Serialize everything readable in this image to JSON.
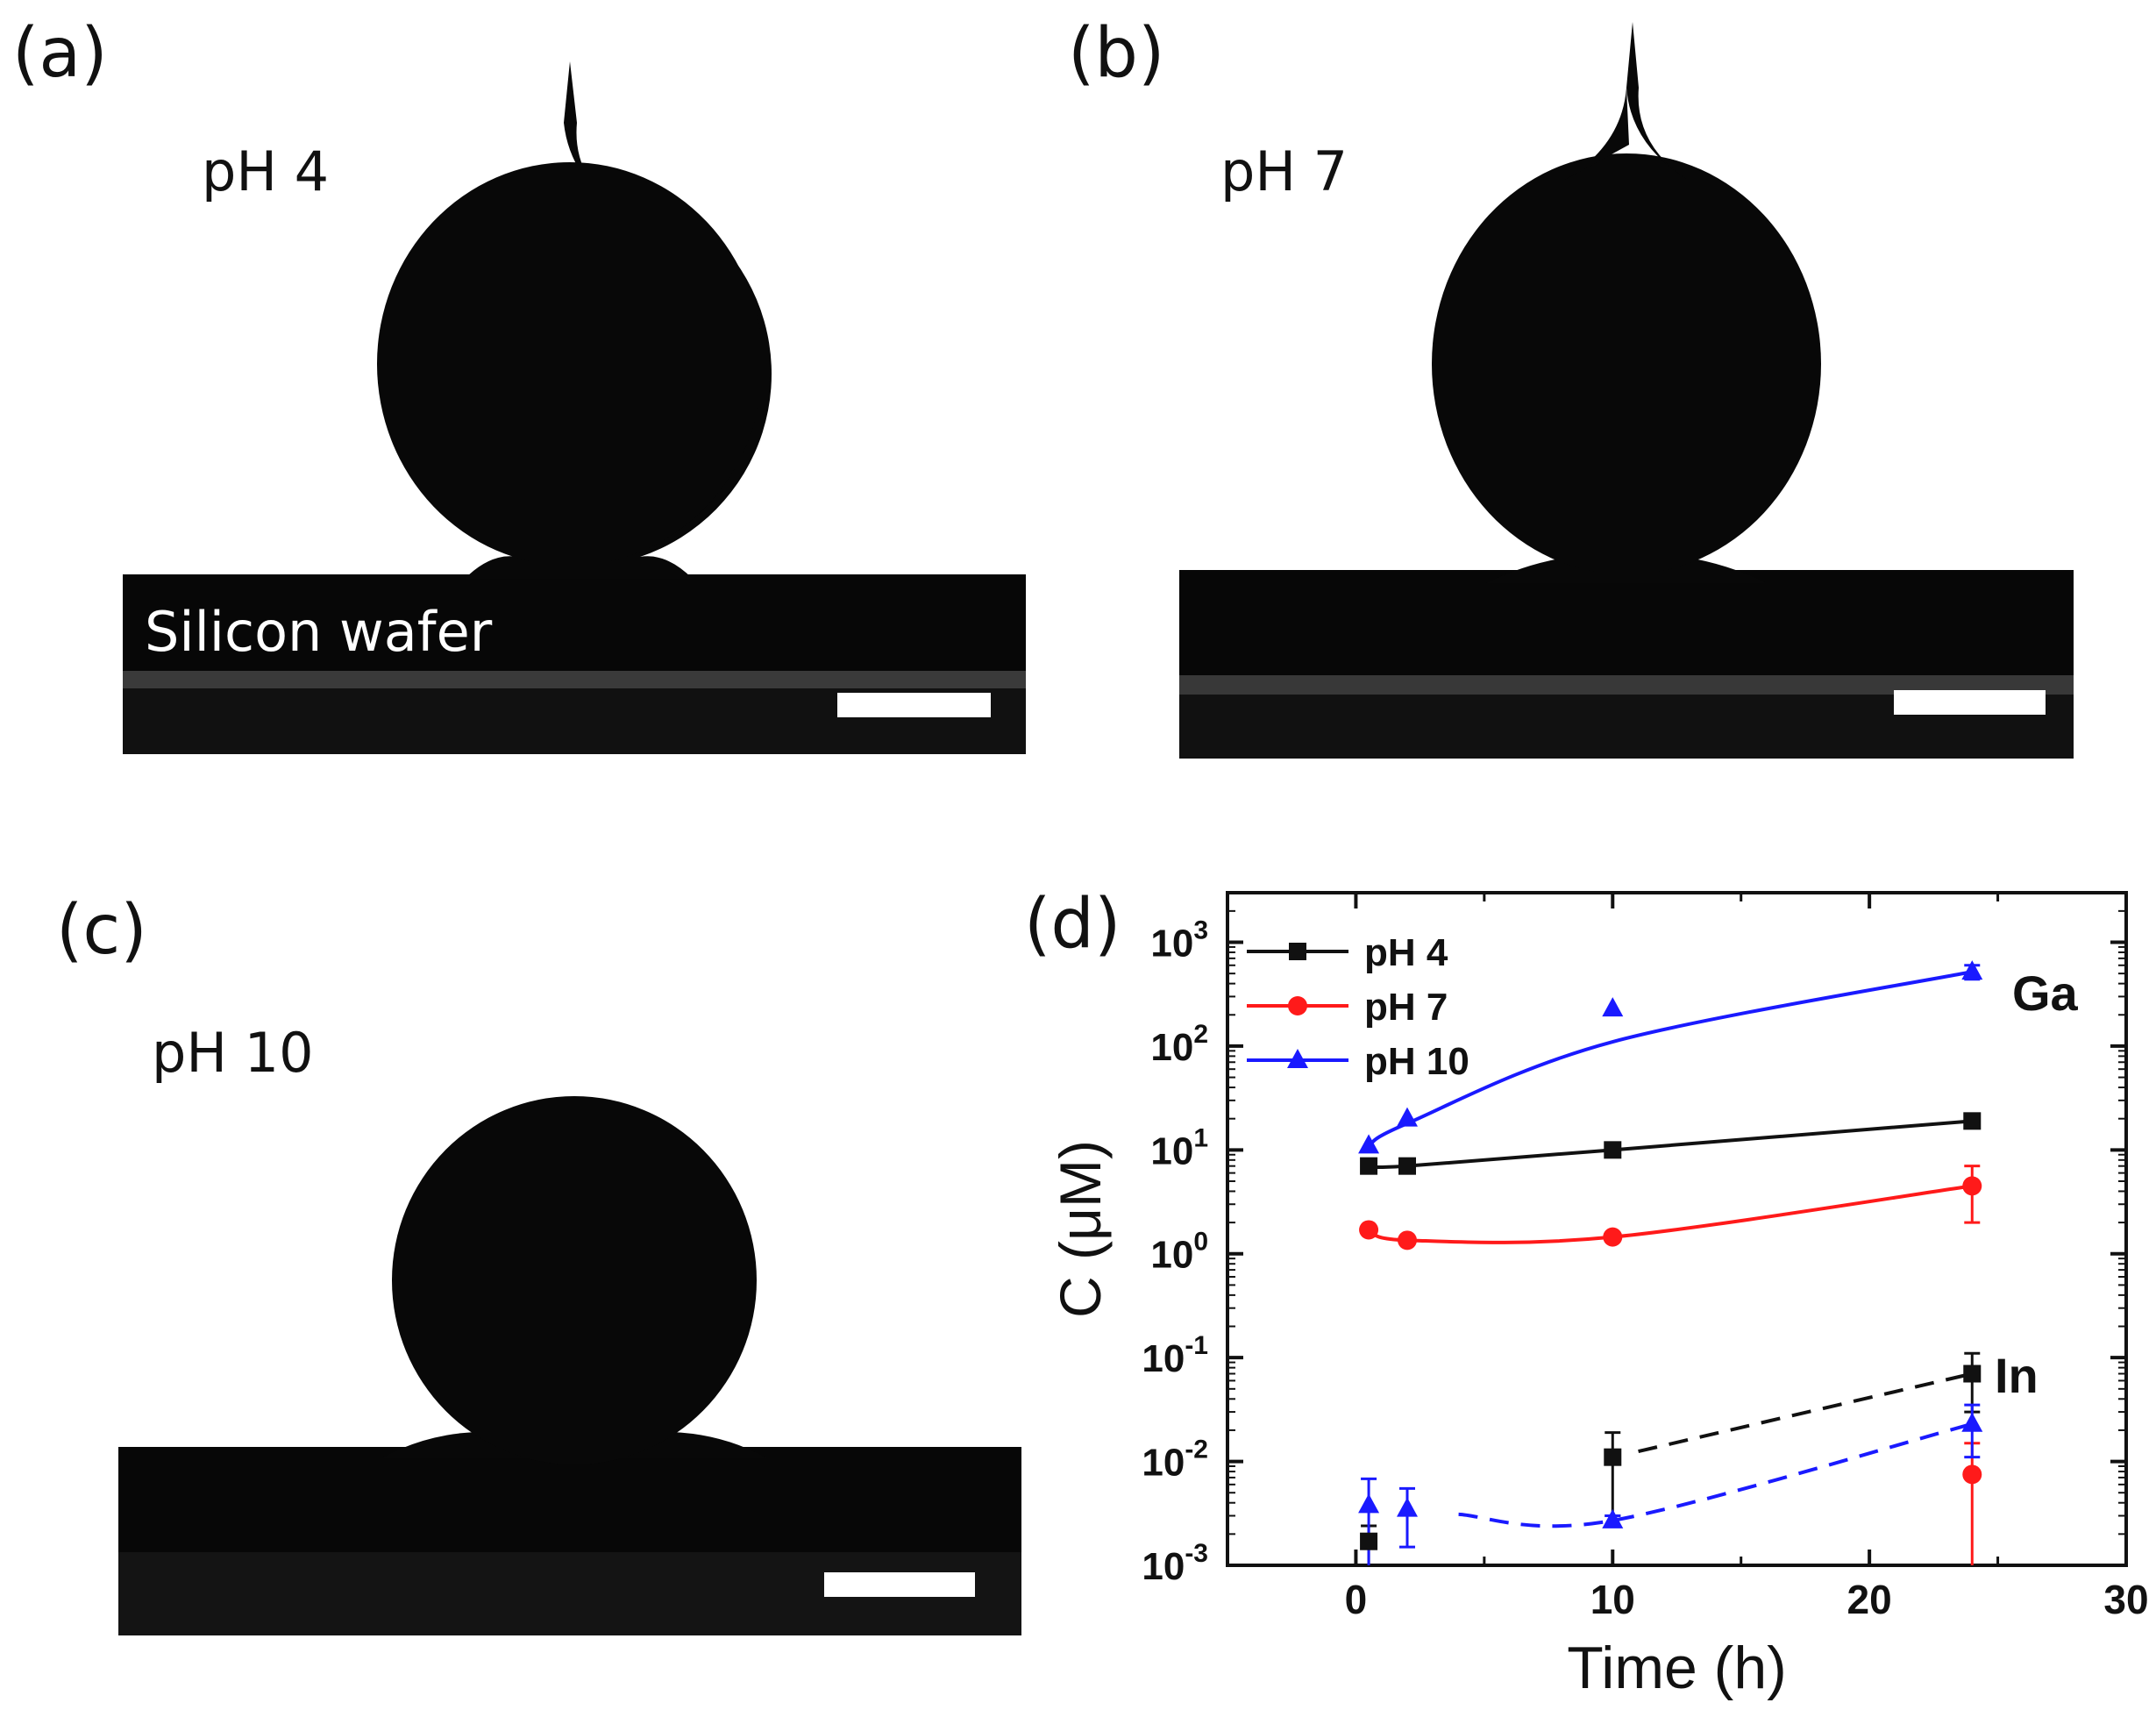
{
  "panels": {
    "a": {
      "label": "(a)",
      "ph": "pH 4",
      "substrate": "Silicon wafer"
    },
    "b": {
      "label": "(b)",
      "ph": "pH 7"
    },
    "c": {
      "label": "(c)",
      "ph": "pH 10"
    },
    "d": {
      "label": "(d)"
    }
  },
  "colors": {
    "pH 4": "#111111",
    "pH 7": "#ff1a1a",
    "pH 10": "#1a1aff"
  },
  "chart_data": {
    "type": "scatter",
    "xlabel": "Time (h)",
    "ylabel": "C (μM)",
    "xlim": [
      -5,
      30
    ],
    "xticks": [
      0,
      10,
      20,
      30
    ],
    "ylim": [
      0.001,
      3000
    ],
    "yscale": "log",
    "yticks": [
      {
        "value": 0.001,
        "base": "10",
        "exp": "-3"
      },
      {
        "value": 0.01,
        "base": "10",
        "exp": "-2"
      },
      {
        "value": 0.1,
        "base": "10",
        "exp": "-1"
      },
      {
        "value": 1,
        "base": "10",
        "exp": "0"
      },
      {
        "value": 10,
        "base": "10",
        "exp": "1"
      },
      {
        "value": 100,
        "base": "10",
        "exp": "2"
      },
      {
        "value": 1000,
        "base": "10",
        "exp": "3"
      }
    ],
    "legend": [
      "pH 4",
      "pH 7",
      "pH 10"
    ],
    "legend_position": "top-left",
    "annotations": [
      "Ga",
      "In"
    ],
    "series": [
      {
        "name": "pH 4",
        "element": "Ga",
        "marker": "square",
        "x": [
          0.5,
          2,
          10,
          24
        ],
        "y": [
          7,
          7,
          10,
          19
        ],
        "err": [
          0,
          0,
          0,
          0
        ],
        "fit": "solid"
      },
      {
        "name": "pH 7",
        "element": "Ga",
        "marker": "circle",
        "x": [
          0.5,
          2,
          10,
          24
        ],
        "y": [
          1.7,
          1.35,
          1.45,
          4.5
        ],
        "err": [
          0,
          0,
          0,
          2.5
        ],
        "fit": "solid"
      },
      {
        "name": "pH 10",
        "element": "Ga",
        "marker": "triangle",
        "x": [
          0.5,
          2,
          10,
          24
        ],
        "y": [
          11,
          20,
          230,
          520
        ],
        "err": [
          0,
          0,
          0,
          80
        ],
        "fit": "solid"
      },
      {
        "name": "pH 4",
        "element": "In",
        "marker": "square",
        "x": [
          0.5,
          10,
          24
        ],
        "y": [
          0.0017,
          0.011,
          0.07
        ],
        "err": [
          0.0007,
          0.008,
          0.04
        ],
        "fit": "dashed"
      },
      {
        "name": "pH 7",
        "element": "In",
        "marker": "circle",
        "x": [
          24
        ],
        "y": [
          0.0075
        ],
        "err": [
          0.0075
        ],
        "fit": "none"
      },
      {
        "name": "pH 10",
        "element": "In",
        "marker": "triangle",
        "x": [
          0.5,
          2,
          10,
          24
        ],
        "y": [
          0.0038,
          0.0035,
          0.0027,
          0.023
        ],
        "err": [
          0.003,
          0.002,
          0.0003,
          0.012
        ],
        "fit": "dashed"
      }
    ]
  }
}
